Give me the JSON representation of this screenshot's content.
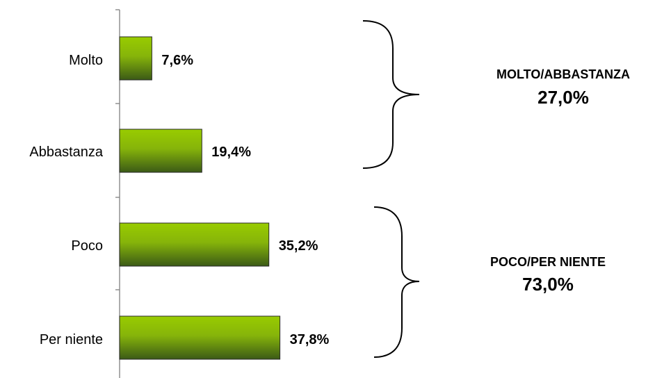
{
  "chart_data": {
    "type": "bar",
    "orientation": "horizontal",
    "categories": [
      "Molto",
      "Abbastanza",
      "Poco",
      "Per niente"
    ],
    "values": [
      7.6,
      19.4,
      35.2,
      37.8
    ],
    "value_labels": [
      "7,6%",
      "19,4%",
      "35,2%",
      "37,8%"
    ],
    "xlim": [
      0,
      100
    ],
    "grid": false,
    "legend": "none",
    "bar_color_top": "#99cc00",
    "bar_color_bottom": "#3b5a16",
    "groups": [
      {
        "name": "MOLTO/ABBASTANZA",
        "total": "27,0%",
        "members": [
          0,
          1
        ]
      },
      {
        "name": "POCO/PER NIENTE",
        "total": "73,0%",
        "members": [
          2,
          3
        ]
      }
    ]
  }
}
